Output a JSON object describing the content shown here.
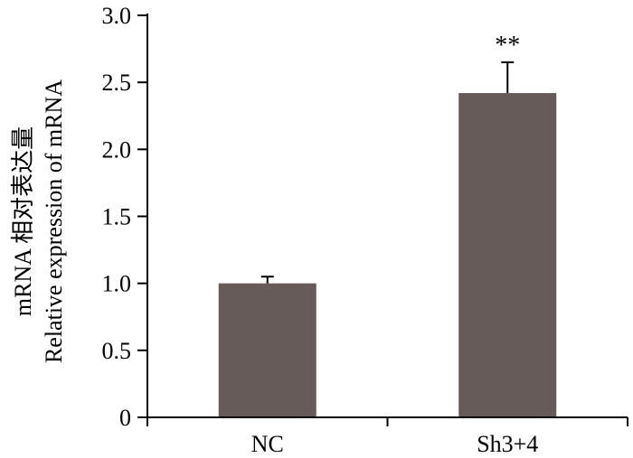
{
  "chart_data": {
    "type": "bar",
    "title": "",
    "xlabel": "",
    "ylabel": [
      "mRNA 相对表达量",
      "Relative expression of mRNA"
    ],
    "categories": [
      "NC",
      "Sh3+4"
    ],
    "values": [
      1.0,
      2.42
    ],
    "errors": [
      0.05,
      0.23
    ],
    "annotations": [
      "",
      "**"
    ],
    "ylim": [
      0,
      3.0
    ],
    "yticks": [
      0,
      0.5,
      1.0,
      1.5,
      2.0,
      2.5,
      3.0
    ],
    "ytick_labels": [
      "0",
      "0.5",
      "1.0",
      "1.5",
      "2.0",
      "2.5",
      "3.0"
    ],
    "bar_color": "#665b59",
    "grid": false
  }
}
